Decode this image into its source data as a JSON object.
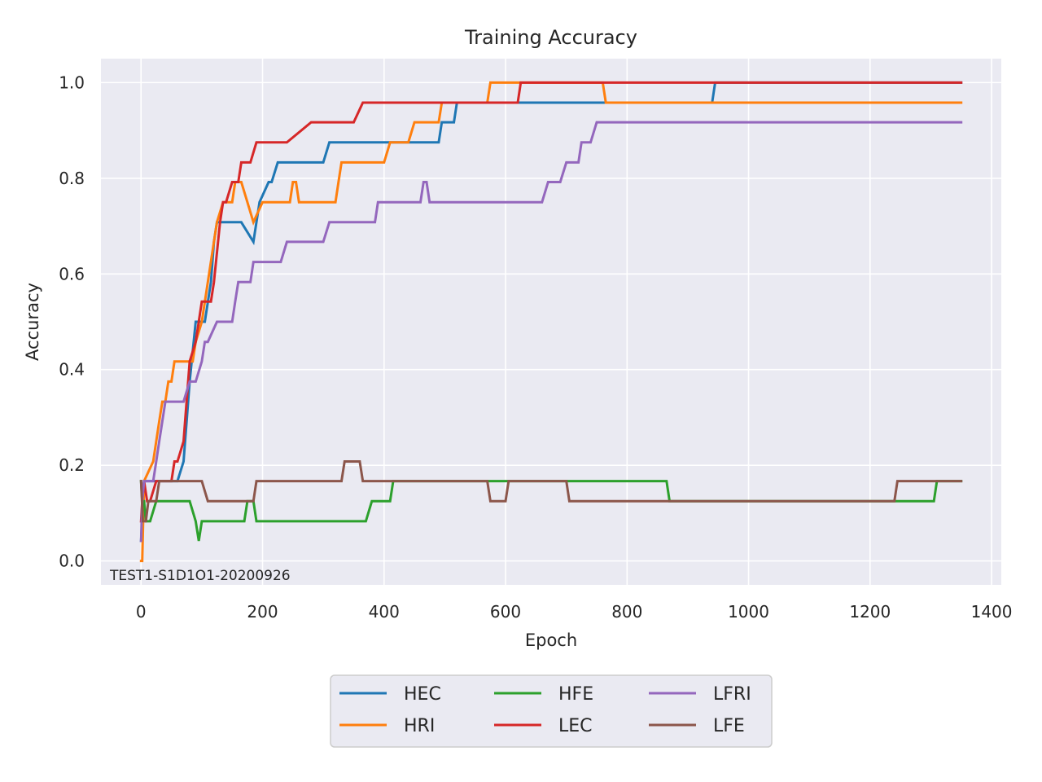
{
  "chart_data": {
    "type": "line",
    "title": "Training Accuracy",
    "xlabel": "Epoch",
    "ylabel": "Accuracy",
    "xlim": [
      -66,
      1416
    ],
    "ylim": [
      -0.05,
      1.05
    ],
    "xticks": [
      0,
      200,
      400,
      600,
      800,
      1000,
      1200,
      1400
    ],
    "yticks": [
      0.0,
      0.2,
      0.4,
      0.6,
      0.8,
      1.0
    ],
    "grid": true,
    "legend_position": "bottom-center",
    "legend_columns": 3,
    "annotation": "TEST1-S1D1O1-20200926",
    "series": [
      {
        "name": "HEC",
        "color": "#1f77b4",
        "x": [
          0,
          5,
          60,
          70,
          80,
          90,
          105,
          115,
          120,
          125,
          135,
          165,
          185,
          195,
          210,
          215,
          225,
          230,
          300,
          310,
          490,
          495,
          515,
          520,
          625,
          630,
          760,
          765,
          940,
          945,
          1350
        ],
        "y": [
          0.042,
          0.167,
          0.167,
          0.208,
          0.375,
          0.5,
          0.5,
          0.583,
          0.667,
          0.708,
          0.708,
          0.708,
          0.667,
          0.75,
          0.792,
          0.792,
          0.833,
          0.833,
          0.833,
          0.875,
          0.875,
          0.917,
          0.917,
          0.958,
          0.958,
          0.958,
          0.958,
          0.958,
          0.958,
          1.0,
          1.0
        ]
      },
      {
        "name": "HRI",
        "color": "#ff7f0e",
        "x": [
          0,
          2,
          5,
          20,
          25,
          30,
          35,
          40,
          45,
          50,
          55,
          85,
          90,
          100,
          110,
          120,
          125,
          135,
          150,
          155,
          165,
          175,
          185,
          200,
          210,
          245,
          250,
          255,
          260,
          320,
          325,
          330,
          400,
          410,
          440,
          450,
          480,
          490,
          495,
          570,
          575,
          760,
          765,
          1350
        ],
        "y": [
          0.0,
          0.0,
          0.167,
          0.208,
          0.25,
          0.292,
          0.333,
          0.333,
          0.375,
          0.375,
          0.417,
          0.417,
          0.458,
          0.5,
          0.583,
          0.667,
          0.708,
          0.75,
          0.75,
          0.792,
          0.792,
          0.75,
          0.708,
          0.75,
          0.75,
          0.75,
          0.792,
          0.792,
          0.75,
          0.75,
          0.792,
          0.833,
          0.833,
          0.875,
          0.875,
          0.917,
          0.917,
          0.917,
          0.958,
          0.958,
          1.0,
          1.0,
          0.958,
          0.958
        ]
      },
      {
        "name": "HFE",
        "color": "#2ca02c",
        "x": [
          0,
          2,
          5,
          8,
          15,
          25,
          40,
          50,
          60,
          80,
          90,
          95,
          100,
          110,
          150,
          170,
          175,
          185,
          190,
          200,
          370,
          380,
          390,
          410,
          415,
          700,
          865,
          870,
          1250,
          1305,
          1310,
          1350
        ],
        "y": [
          0.167,
          0.125,
          0.125,
          0.083,
          0.083,
          0.125,
          0.125,
          0.125,
          0.125,
          0.125,
          0.083,
          0.042,
          0.083,
          0.083,
          0.083,
          0.083,
          0.125,
          0.125,
          0.083,
          0.083,
          0.083,
          0.125,
          0.125,
          0.125,
          0.167,
          0.167,
          0.167,
          0.125,
          0.125,
          0.125,
          0.167,
          0.167
        ]
      },
      {
        "name": "LEC",
        "color": "#d62728",
        "x": [
          0,
          2,
          5,
          10,
          15,
          25,
          40,
          50,
          55,
          60,
          70,
          75,
          80,
          90,
          100,
          105,
          115,
          120,
          130,
          135,
          140,
          150,
          160,
          165,
          180,
          190,
          200,
          240,
          280,
          290,
          350,
          365,
          370,
          420,
          450,
          470,
          490,
          495,
          620,
          625,
          630,
          1350
        ],
        "y": [
          0.083,
          0.125,
          0.167,
          0.125,
          0.125,
          0.167,
          0.167,
          0.167,
          0.208,
          0.208,
          0.25,
          0.333,
          0.417,
          0.458,
          0.542,
          0.542,
          0.542,
          0.583,
          0.708,
          0.75,
          0.75,
          0.792,
          0.792,
          0.833,
          0.833,
          0.875,
          0.875,
          0.875,
          0.917,
          0.917,
          0.917,
          0.958,
          0.958,
          0.958,
          0.958,
          0.958,
          0.958,
          0.958,
          0.958,
          1.0,
          1.0,
          1.0
        ]
      },
      {
        "name": "LFRI",
        "color": "#9467bd",
        "x": [
          0,
          2,
          5,
          20,
          25,
          30,
          35,
          40,
          70,
          80,
          90,
          100,
          105,
          110,
          125,
          150,
          155,
          160,
          180,
          185,
          190,
          230,
          240,
          300,
          310,
          385,
          390,
          460,
          465,
          470,
          475,
          560,
          660,
          670,
          690,
          700,
          720,
          725,
          740,
          750,
          760,
          1350
        ],
        "y": [
          0.042,
          0.125,
          0.167,
          0.167,
          0.208,
          0.25,
          0.292,
          0.333,
          0.333,
          0.375,
          0.375,
          0.417,
          0.458,
          0.458,
          0.5,
          0.5,
          0.542,
          0.583,
          0.583,
          0.625,
          0.625,
          0.625,
          0.667,
          0.667,
          0.708,
          0.708,
          0.75,
          0.75,
          0.792,
          0.792,
          0.75,
          0.75,
          0.75,
          0.792,
          0.792,
          0.833,
          0.833,
          0.875,
          0.875,
          0.917,
          0.917,
          0.917
        ]
      },
      {
        "name": "LFE",
        "color": "#8c564b",
        "x": [
          0,
          3,
          8,
          12,
          25,
          30,
          35,
          100,
          110,
          185,
          190,
          195,
          330,
          335,
          345,
          360,
          365,
          420,
          570,
          575,
          600,
          605,
          700,
          705,
          1240,
          1245,
          1350
        ],
        "y": [
          0.167,
          0.083,
          0.083,
          0.125,
          0.125,
          0.167,
          0.167,
          0.167,
          0.125,
          0.125,
          0.167,
          0.167,
          0.167,
          0.208,
          0.208,
          0.208,
          0.167,
          0.167,
          0.167,
          0.125,
          0.125,
          0.167,
          0.167,
          0.125,
          0.125,
          0.167,
          0.167
        ]
      }
    ]
  }
}
